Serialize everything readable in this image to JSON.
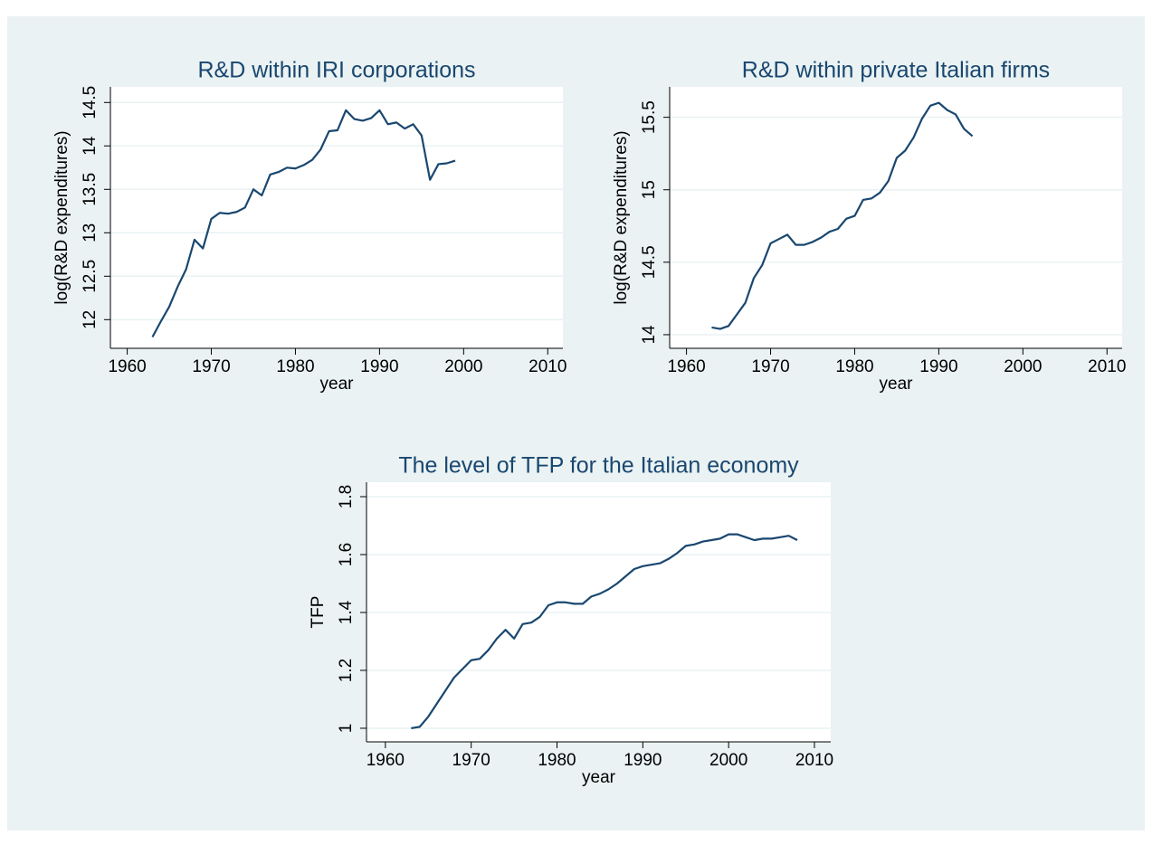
{
  "chart_data": [
    {
      "type": "line",
      "title": "R&D within IRI corporations",
      "xlabel": "year",
      "ylabel": "log(R&D expenditures)",
      "xlim": [
        1958,
        2011.8
      ],
      "ylim": [
        11.67,
        14.68
      ],
      "xticks": [
        1960,
        1970,
        1980,
        1990,
        2000,
        2010
      ],
      "yticks": [
        12,
        12.5,
        13,
        13.5,
        14,
        14.5
      ],
      "grid": true,
      "color": "#1a476f",
      "x": [
        1963,
        1964,
        1965,
        1966,
        1967,
        1968,
        1969,
        1970,
        1971,
        1972,
        1973,
        1974,
        1975,
        1976,
        1977,
        1978,
        1979,
        1980,
        1981,
        1982,
        1983,
        1984,
        1985,
        1986,
        1987,
        1988,
        1989,
        1990,
        1991,
        1992,
        1993,
        1994,
        1995,
        1996,
        1997,
        1998,
        1999
      ],
      "values": [
        11.8,
        11.98,
        12.15,
        12.38,
        12.58,
        12.92,
        12.82,
        13.16,
        13.23,
        13.22,
        13.24,
        13.29,
        13.5,
        13.43,
        13.67,
        13.7,
        13.75,
        13.74,
        13.78,
        13.84,
        13.96,
        14.17,
        14.18,
        14.41,
        14.31,
        14.29,
        14.32,
        14.41,
        14.25,
        14.27,
        14.2,
        14.25,
        14.12,
        13.61,
        13.79,
        13.8,
        13.83
      ]
    },
    {
      "type": "line",
      "title": "R&D within private Italian firms",
      "xlabel": "year",
      "ylabel": "log(R&D expenditures)",
      "xlim": [
        1958,
        2011.8
      ],
      "ylim": [
        13.906,
        15.71
      ],
      "xticks": [
        1960,
        1970,
        1980,
        1990,
        2000,
        2010
      ],
      "yticks": [
        14,
        14.5,
        15,
        15.5
      ],
      "grid": true,
      "color": "#1a476f",
      "x": [
        1963,
        1964,
        1965,
        1966,
        1967,
        1968,
        1969,
        1970,
        1971,
        1972,
        1973,
        1974,
        1975,
        1976,
        1977,
        1978,
        1979,
        1980,
        1981,
        1982,
        1983,
        1984,
        1985,
        1986,
        1987,
        1988,
        1989,
        1990,
        1991,
        1992,
        1993,
        1994
      ],
      "values": [
        14.05,
        14.04,
        14.06,
        14.14,
        14.22,
        14.39,
        14.48,
        14.63,
        14.66,
        14.69,
        14.62,
        14.62,
        14.64,
        14.67,
        14.71,
        14.73,
        14.8,
        14.82,
        14.93,
        14.94,
        14.98,
        15.06,
        15.22,
        15.27,
        15.36,
        15.49,
        15.58,
        15.6,
        15.55,
        15.52,
        15.42,
        15.37
      ]
    },
    {
      "type": "line",
      "title": "The level of TFP for the Italian economy",
      "xlabel": "year",
      "ylabel": "TFP",
      "xlim": [
        1957.8,
        2011.9
      ],
      "ylim": [
        0.953,
        1.85
      ],
      "xticks": [
        1960,
        1970,
        1980,
        1990,
        2000,
        2010
      ],
      "yticks": [
        1,
        1.2,
        1.4,
        1.6,
        1.8
      ],
      "grid": true,
      "color": "#1a476f",
      "x": [
        1963,
        1964,
        1965,
        1966,
        1967,
        1968,
        1969,
        1970,
        1971,
        1972,
        1973,
        1974,
        1975,
        1976,
        1977,
        1978,
        1979,
        1980,
        1981,
        1982,
        1983,
        1984,
        1985,
        1986,
        1987,
        1988,
        1989,
        1990,
        1991,
        1992,
        1993,
        1994,
        1995,
        1996,
        1997,
        1998,
        1999,
        2000,
        2001,
        2002,
        2003,
        2004,
        2005,
        2006,
        2007,
        2008
      ],
      "values": [
        1.0,
        1.005,
        1.04,
        1.085,
        1.13,
        1.175,
        1.205,
        1.235,
        1.24,
        1.27,
        1.31,
        1.34,
        1.31,
        1.36,
        1.365,
        1.385,
        1.425,
        1.435,
        1.435,
        1.43,
        1.43,
        1.455,
        1.465,
        1.48,
        1.5,
        1.525,
        1.55,
        1.56,
        1.565,
        1.57,
        1.585,
        1.605,
        1.63,
        1.635,
        1.645,
        1.65,
        1.655,
        1.67,
        1.67,
        1.66,
        1.65,
        1.655,
        1.655,
        1.66,
        1.665,
        1.65
      ]
    }
  ]
}
